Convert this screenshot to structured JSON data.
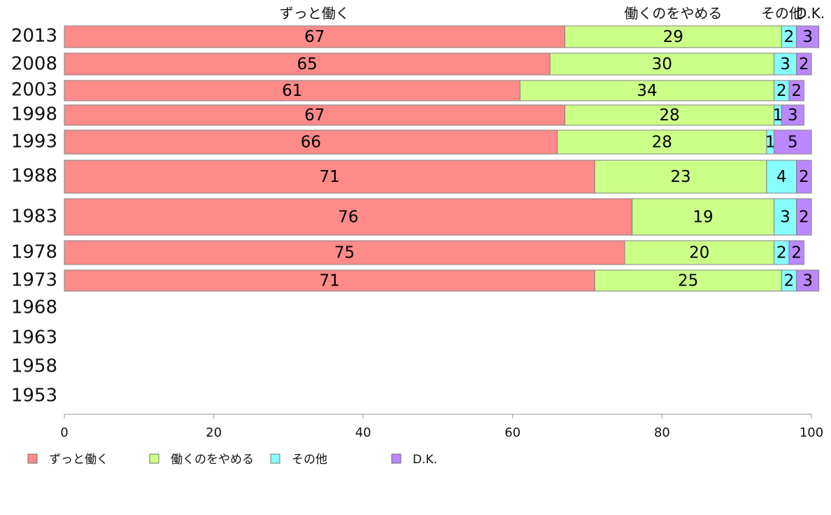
{
  "chart_data": {
    "type": "bar",
    "orientation": "horizontal",
    "stacked": true,
    "categories": [
      "2013",
      "2008",
      "2003",
      "1998",
      "1993",
      "1988",
      "1983",
      "1978",
      "1973",
      "1968",
      "1963",
      "1958",
      "1953"
    ],
    "series": [
      {
        "name": "ずっと働く",
        "color": "#ff8a8a",
        "values": [
          67,
          65,
          61,
          67,
          66,
          71,
          76,
          75,
          71,
          null,
          null,
          null,
          null
        ]
      },
      {
        "name": "働くのをやめる",
        "color": "#ccff88",
        "values": [
          29,
          30,
          34,
          28,
          28,
          23,
          19,
          20,
          25,
          null,
          null,
          null,
          null
        ]
      },
      {
        "name": "その他",
        "color": "#88ffff",
        "values": [
          2,
          3,
          2,
          1,
          1,
          4,
          3,
          2,
          2,
          null,
          null,
          null,
          null
        ]
      },
      {
        "name": "D.K.",
        "color": "#bb88ff",
        "values": [
          3,
          2,
          2,
          3,
          5,
          2,
          2,
          2,
          3,
          null,
          null,
          null,
          null
        ]
      }
    ],
    "top_labels": [
      "ずっと働く",
      "働くのをやめる",
      "その他",
      "D.K."
    ],
    "xlim": [
      0,
      100
    ],
    "xticks": [
      "0",
      "20",
      "40",
      "60",
      "80",
      "100"
    ],
    "xlabel": "",
    "ylabel": "",
    "title": "",
    "grid": false,
    "legend_position": "bottom"
  }
}
